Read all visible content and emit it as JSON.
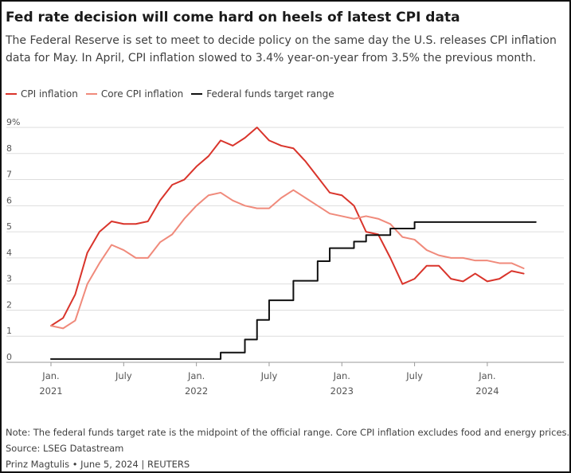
{
  "header": {
    "title": "Fed rate decision will come hard on heels of latest CPI data",
    "subtitle": "The Federal Reserve is set to meet to decide policy on the same day the U.S. releases CPI inflation data for May. In April, CPI inflation slowed to 3.4% year-on-year from 3.5% the previous month."
  },
  "colors": {
    "cpi": "#d9342b",
    "core_cpi": "#f08a7b",
    "fed_funds": "#111111",
    "grid": "#dddddd"
  },
  "footer": {
    "note": "Note: The federal funds target rate is the midpoint of the official range. Core CPI inflation excludes food and energy prices.",
    "source": "Source: LSEG Datastream",
    "credit": "Prinz Magtulis • June 5, 2024 | REUTERS"
  },
  "chart_data": {
    "type": "line",
    "title": "Fed rate decision will come hard on heels of latest CPI data",
    "xlabel": "",
    "ylabel": "",
    "ylim": [
      0,
      9
    ],
    "xlim": [
      "2021-01",
      "2024-06"
    ],
    "grid": true,
    "legend_position": "top-left",
    "y_ticks": [
      "0",
      "1",
      "2",
      "3",
      "4",
      "5",
      "6",
      "7",
      "8",
      "9%"
    ],
    "x_ticks": [
      {
        "month": "2021-01",
        "label": "Jan.",
        "sublabel": "2021"
      },
      {
        "month": "2021-07",
        "label": "July",
        "sublabel": ""
      },
      {
        "month": "2022-01",
        "label": "Jan.",
        "sublabel": "2022"
      },
      {
        "month": "2022-07",
        "label": "July",
        "sublabel": ""
      },
      {
        "month": "2023-01",
        "label": "Jan.",
        "sublabel": "2023"
      },
      {
        "month": "2023-07",
        "label": "July",
        "sublabel": ""
      },
      {
        "month": "2024-01",
        "label": "Jan.",
        "sublabel": "2024"
      }
    ],
    "months": [
      "2021-01",
      "2021-02",
      "2021-03",
      "2021-04",
      "2021-05",
      "2021-06",
      "2021-07",
      "2021-08",
      "2021-09",
      "2021-10",
      "2021-11",
      "2021-12",
      "2022-01",
      "2022-02",
      "2022-03",
      "2022-04",
      "2022-05",
      "2022-06",
      "2022-07",
      "2022-08",
      "2022-09",
      "2022-10",
      "2022-11",
      "2022-12",
      "2023-01",
      "2023-02",
      "2023-03",
      "2023-04",
      "2023-05",
      "2023-06",
      "2023-07",
      "2023-08",
      "2023-09",
      "2023-10",
      "2023-11",
      "2023-12",
      "2024-01",
      "2024-02",
      "2024-03",
      "2024-04"
    ],
    "series": [
      {
        "name": "CPI inflation",
        "color": "#d9342b",
        "style": "line",
        "values": [
          1.4,
          1.7,
          2.6,
          4.2,
          5.0,
          5.4,
          5.3,
          5.3,
          5.4,
          6.2,
          6.8,
          7.0,
          7.5,
          7.9,
          8.5,
          8.3,
          8.6,
          9.0,
          8.5,
          8.3,
          8.2,
          7.7,
          7.1,
          6.5,
          6.4,
          6.0,
          5.0,
          4.9,
          4.0,
          3.0,
          3.2,
          3.7,
          3.7,
          3.2,
          3.1,
          3.4,
          3.1,
          3.2,
          3.5,
          3.4
        ]
      },
      {
        "name": "Core CPI inflation",
        "color": "#f08a7b",
        "style": "line",
        "values": [
          1.4,
          1.3,
          1.6,
          3.0,
          3.8,
          4.5,
          4.3,
          4.0,
          4.0,
          4.6,
          4.9,
          5.5,
          6.0,
          6.4,
          6.5,
          6.2,
          6.0,
          5.9,
          5.9,
          6.3,
          6.6,
          6.3,
          6.0,
          5.7,
          5.6,
          5.5,
          5.6,
          5.5,
          5.3,
          4.8,
          4.7,
          4.3,
          4.1,
          4.0,
          4.0,
          3.9,
          3.9,
          3.8,
          3.8,
          3.6
        ]
      },
      {
        "name": "Federal funds target range",
        "color": "#111111",
        "style": "step",
        "steps": [
          {
            "month": "2021-01",
            "value": 0.125
          },
          {
            "month": "2022-03",
            "value": 0.375
          },
          {
            "month": "2022-05",
            "value": 0.875
          },
          {
            "month": "2022-06",
            "value": 1.625
          },
          {
            "month": "2022-07",
            "value": 2.375
          },
          {
            "month": "2022-09",
            "value": 3.125
          },
          {
            "month": "2022-11",
            "value": 3.875
          },
          {
            "month": "2022-12",
            "value": 4.375
          },
          {
            "month": "2023-02",
            "value": 4.625
          },
          {
            "month": "2023-03",
            "value": 4.875
          },
          {
            "month": "2023-05",
            "value": 5.125
          },
          {
            "month": "2023-07",
            "value": 5.375
          },
          {
            "month": "2024-05",
            "value": 5.375
          }
        ]
      }
    ]
  }
}
